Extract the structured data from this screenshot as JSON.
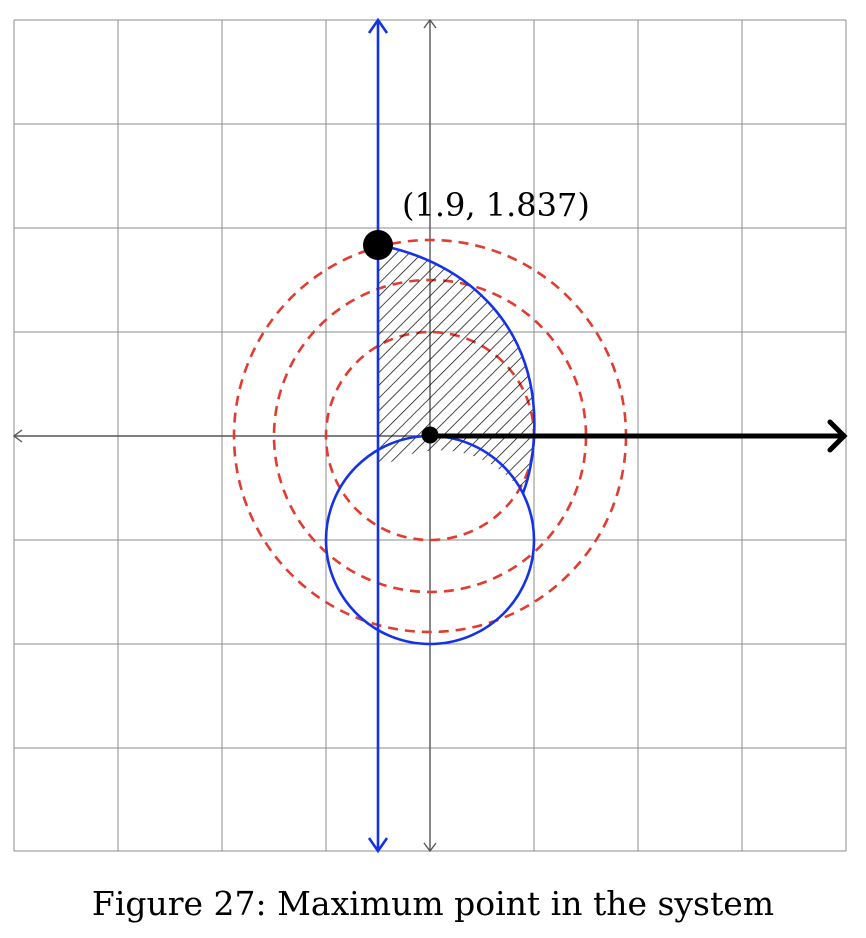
{
  "figure": {
    "caption": "Figure 27: Maximum point in the system",
    "point_label": "(1.9, 1.837)"
  },
  "colors": {
    "grid": "#8c8c8c",
    "axis": "#555555",
    "blue": "#1533e6",
    "red": "#e03c31",
    "black": "#000000"
  }
}
